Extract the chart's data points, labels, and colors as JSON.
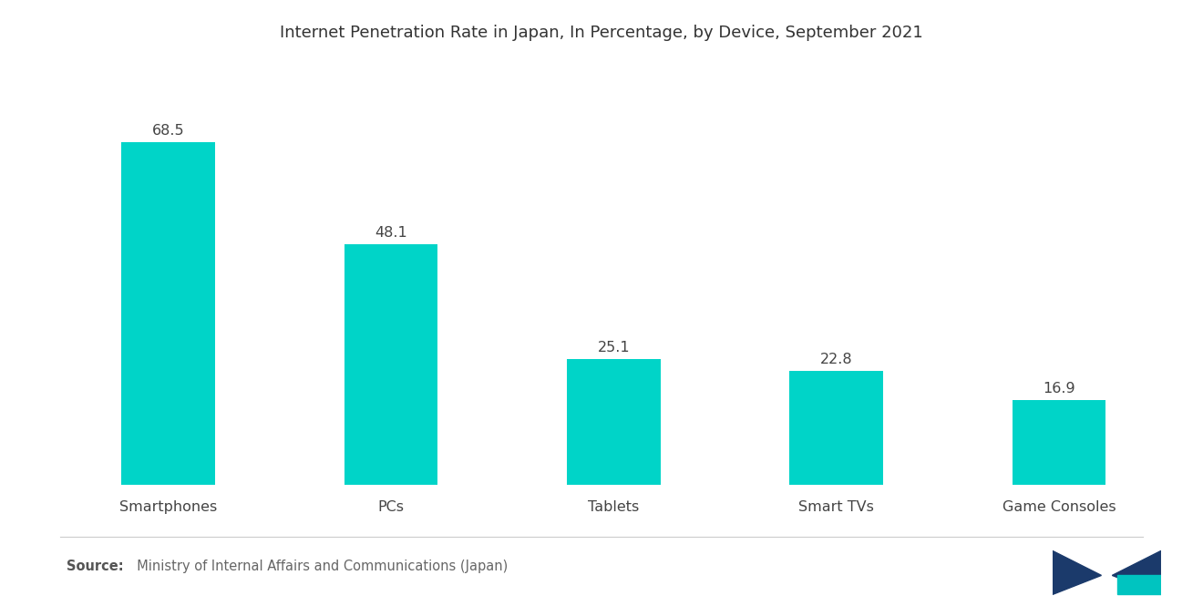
{
  "title": "Internet Penetration Rate in Japan, In Percentage, by Device, September 2021",
  "categories": [
    "Smartphones",
    "PCs",
    "Tablets",
    "Smart TVs",
    "Game Consoles"
  ],
  "values": [
    68.5,
    48.1,
    25.1,
    22.8,
    16.9
  ],
  "bar_color": "#00D4C8",
  "background_color": "#FFFFFF",
  "title_fontsize": 13.0,
  "label_fontsize": 11.5,
  "value_fontsize": 11.5,
  "source_bold": "Source:",
  "source_rest": "  Ministry of Internal Affairs and Communications (Japan)",
  "ylim": [
    0,
    80
  ],
  "bar_width": 0.42
}
